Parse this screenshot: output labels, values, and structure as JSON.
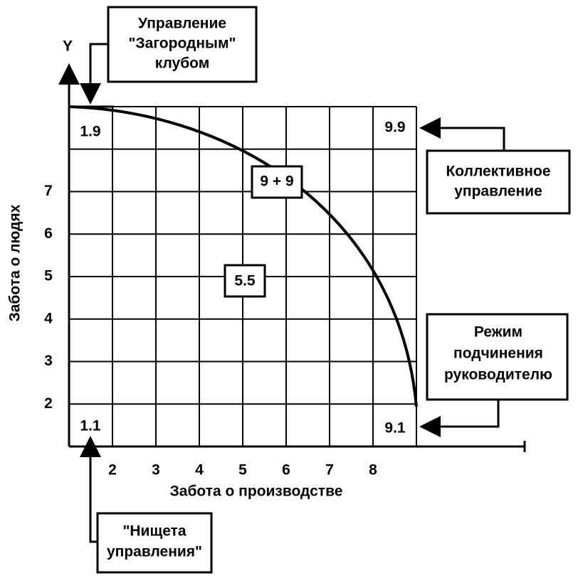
{
  "axes": {
    "y_symbol": "Y",
    "y_title": "Забота о людях",
    "x_title": "Забота о производстве",
    "x_ticks": [
      "2",
      "3",
      "4",
      "5",
      "6",
      "7",
      "8"
    ],
    "y_ticks": [
      "7",
      "6",
      "5",
      "4",
      "3",
      "2"
    ]
  },
  "cells": {
    "top_left": "1.9",
    "top_right": "9.9",
    "bottom_left": "1.1",
    "bottom_right": "9.1",
    "center": "5.5",
    "curve": "9 + 9"
  },
  "callouts": {
    "country_club": [
      "Управление",
      "\"Загородным\"",
      "клубом"
    ],
    "team": [
      "Коллективное",
      "управление"
    ],
    "authority": [
      "Режим",
      "подчинения",
      "руководителю"
    ],
    "impoverished": [
      "\"Нищета",
      "управления\""
    ]
  }
}
